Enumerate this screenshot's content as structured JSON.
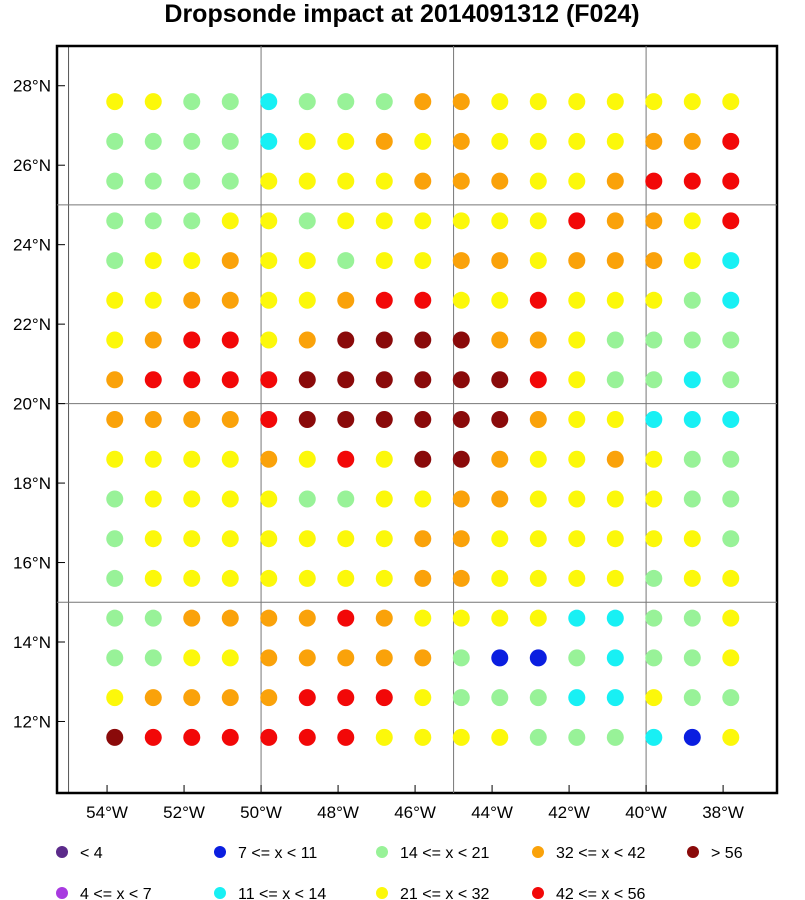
{
  "chart_data": {
    "type": "scatter",
    "title": "Dropsonde impact at 2014091312 (F024)",
    "xlim": [
      -55.3,
      -36.6
    ],
    "ylim": [
      10.2,
      29.0
    ],
    "x_ticks": [
      {
        "value": -54,
        "label": "54°W"
      },
      {
        "value": -52,
        "label": "52°W"
      },
      {
        "value": -50,
        "label": "50°W"
      },
      {
        "value": -48,
        "label": "48°W"
      },
      {
        "value": -46,
        "label": "46°W"
      },
      {
        "value": -44,
        "label": "44°W"
      },
      {
        "value": -42,
        "label": "42°W"
      },
      {
        "value": -40,
        "label": "40°W"
      },
      {
        "value": -38,
        "label": "38°W"
      }
    ],
    "y_ticks": [
      {
        "value": 12,
        "label": "12°N"
      },
      {
        "value": 14,
        "label": "14°N"
      },
      {
        "value": 16,
        "label": "16°N"
      },
      {
        "value": 18,
        "label": "18°N"
      },
      {
        "value": 20,
        "label": "20°N"
      },
      {
        "value": 22,
        "label": "22°N"
      },
      {
        "value": 24,
        "label": "24°N"
      },
      {
        "value": 26,
        "label": "26°N"
      },
      {
        "value": 28,
        "label": "28°N"
      }
    ],
    "grid_lon": [
      -50,
      -45,
      -40
    ],
    "grid_lat": [
      15,
      20,
      25
    ],
    "categories": [
      {
        "code": "0",
        "label": "<  4",
        "color": "#5b2a8a"
      },
      {
        "code": "1",
        "label": "4 <= x <  7",
        "color": "#a83ae0"
      },
      {
        "code": "2",
        "label": "7 <= x < 11",
        "color": "#0a1ee0"
      },
      {
        "code": "3",
        "label": "11 <= x < 14",
        "color": "#18f0f4"
      },
      {
        "code": "4",
        "label": "14 <= x < 21",
        "color": "#98f298"
      },
      {
        "code": "5",
        "label": "21 <= x < 32",
        "color": "#fcf80a"
      },
      {
        "code": "6",
        "label": "32 <= x < 42",
        "color": "#faa20a"
      },
      {
        "code": "7",
        "label": "42 <= x < 56",
        "color": "#f20808"
      },
      {
        "code": "8",
        "label": "> 56",
        "color": "#8a0a0a"
      }
    ],
    "legend_layout": "bottom, 5 columns x 2 rows",
    "lons": [
      -53.8,
      -52.8,
      -51.8,
      -50.8,
      -49.8,
      -48.8,
      -47.8,
      -46.8,
      -45.8,
      -44.8,
      -43.8,
      -42.8,
      -41.8,
      -40.8,
      -39.8,
      -38.8,
      -37.8
    ],
    "lats": [
      27.6,
      26.6,
      25.6,
      24.6,
      23.6,
      22.6,
      21.6,
      20.6,
      19.6,
      18.6,
      17.6,
      16.6,
      15.6,
      14.6,
      13.6,
      12.6,
      11.6
    ],
    "grid_codes": [
      "55443444665555555",
      "44443556565555667",
      "44445555666556777",
      "44455455555576657",
      "45565545566566653",
      "55665567755755543",
      "56775688886654444",
      "67777888888754434",
      "66667888888655333",
      "55556575886556544",
      "45555445566555544",
      "45555555665555554",
      "45555555665555455",
      "44666676555533445",
      "44556666642243445",
      "56666777544433544",
      "87777775555444325"
    ]
  }
}
